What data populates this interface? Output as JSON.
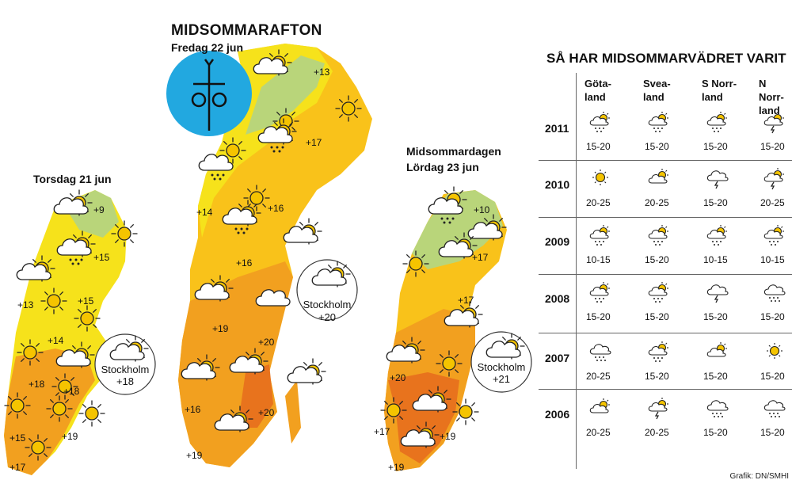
{
  "main_map": {
    "title": "MIDSOMMARAFTON",
    "subtitle": "Fredag 22 jun",
    "temps": [
      "+13",
      "+17",
      "+14",
      "+16",
      "+16",
      "+19",
      "+20",
      "+20",
      "+16",
      "+19"
    ],
    "stockholm": {
      "name": "Stockholm",
      "temp": "+20"
    }
  },
  "thu_map": {
    "title": "Torsdag 21 jun",
    "temps": [
      "+9",
      "+15",
      "+13",
      "+15",
      "+14",
      "+18",
      "+18",
      "+15",
      "+19",
      "+17"
    ],
    "stockholm": {
      "name": "Stockholm",
      "temp": "+18"
    }
  },
  "sat_map": {
    "title_line1": "Midsommardagen",
    "title_line2": "Lördag 23 jun",
    "temps": [
      "+10",
      "+17",
      "+17",
      "+20",
      "+17",
      "+19",
      "+19"
    ],
    "stockholm": {
      "name": "Stockholm",
      "temp": "+21"
    }
  },
  "table": {
    "title": "SÅ HAR MIDSOMMARVÄDRET VARIT",
    "columns": [
      {
        "line1": "Göta-",
        "line2": "land"
      },
      {
        "line1": "Svea-",
        "line2": "land"
      },
      {
        "line1": "S Norr-",
        "line2": "land"
      },
      {
        "line1": "N Norr-",
        "line2": "land"
      }
    ],
    "rows": [
      {
        "year": "2011",
        "cells": [
          {
            "icon": "sun-cloud-rain",
            "range": "15-20"
          },
          {
            "icon": "sun-cloud-rain",
            "range": "15-20"
          },
          {
            "icon": "sun-cloud-rain",
            "range": "15-20"
          },
          {
            "icon": "sun-cloud-thunder",
            "range": "15-20"
          }
        ]
      },
      {
        "year": "2010",
        "cells": [
          {
            "icon": "sun",
            "range": "20-25"
          },
          {
            "icon": "sun-cloud",
            "range": "20-25"
          },
          {
            "icon": "cloud-thunder",
            "range": "15-20"
          },
          {
            "icon": "sun-cloud-thunder",
            "range": "20-25"
          }
        ]
      },
      {
        "year": "2009",
        "cells": [
          {
            "icon": "sun-cloud-rain",
            "range": "10-15"
          },
          {
            "icon": "sun-cloud-rain",
            "range": "15-20"
          },
          {
            "icon": "sun-cloud-rain",
            "range": "10-15"
          },
          {
            "icon": "sun-cloud-rain",
            "range": "10-15"
          }
        ]
      },
      {
        "year": "2008",
        "cells": [
          {
            "icon": "sun-cloud-rain",
            "range": "15-20"
          },
          {
            "icon": "sun-cloud-rain",
            "range": "15-20"
          },
          {
            "icon": "cloud-thunder",
            "range": "15-20"
          },
          {
            "icon": "cloud-rain",
            "range": "15-20"
          }
        ]
      },
      {
        "year": "2007",
        "cells": [
          {
            "icon": "cloud-rain",
            "range": "20-25"
          },
          {
            "icon": "sun-cloud-rain",
            "range": "15-20"
          },
          {
            "icon": "sun-cloud",
            "range": "15-20"
          },
          {
            "icon": "sun",
            "range": "15-20"
          }
        ]
      },
      {
        "year": "2006",
        "cells": [
          {
            "icon": "sun-cloud",
            "range": "20-25"
          },
          {
            "icon": "sun-cloud-thunder",
            "range": "20-25"
          },
          {
            "icon": "cloud-rain",
            "range": "15-20"
          },
          {
            "icon": "cloud-rain",
            "range": "15-20"
          }
        ]
      }
    ],
    "credit": "Grafik: DN/SMHI"
  },
  "colors": {
    "sun": "#f5c400",
    "yellow": "#f6e21b",
    "light_orange": "#f9c21a",
    "orange": "#f2a01f",
    "dark_orange": "#e8731d",
    "green": "#b9d57a",
    "blue_circle": "#22a8e0"
  }
}
